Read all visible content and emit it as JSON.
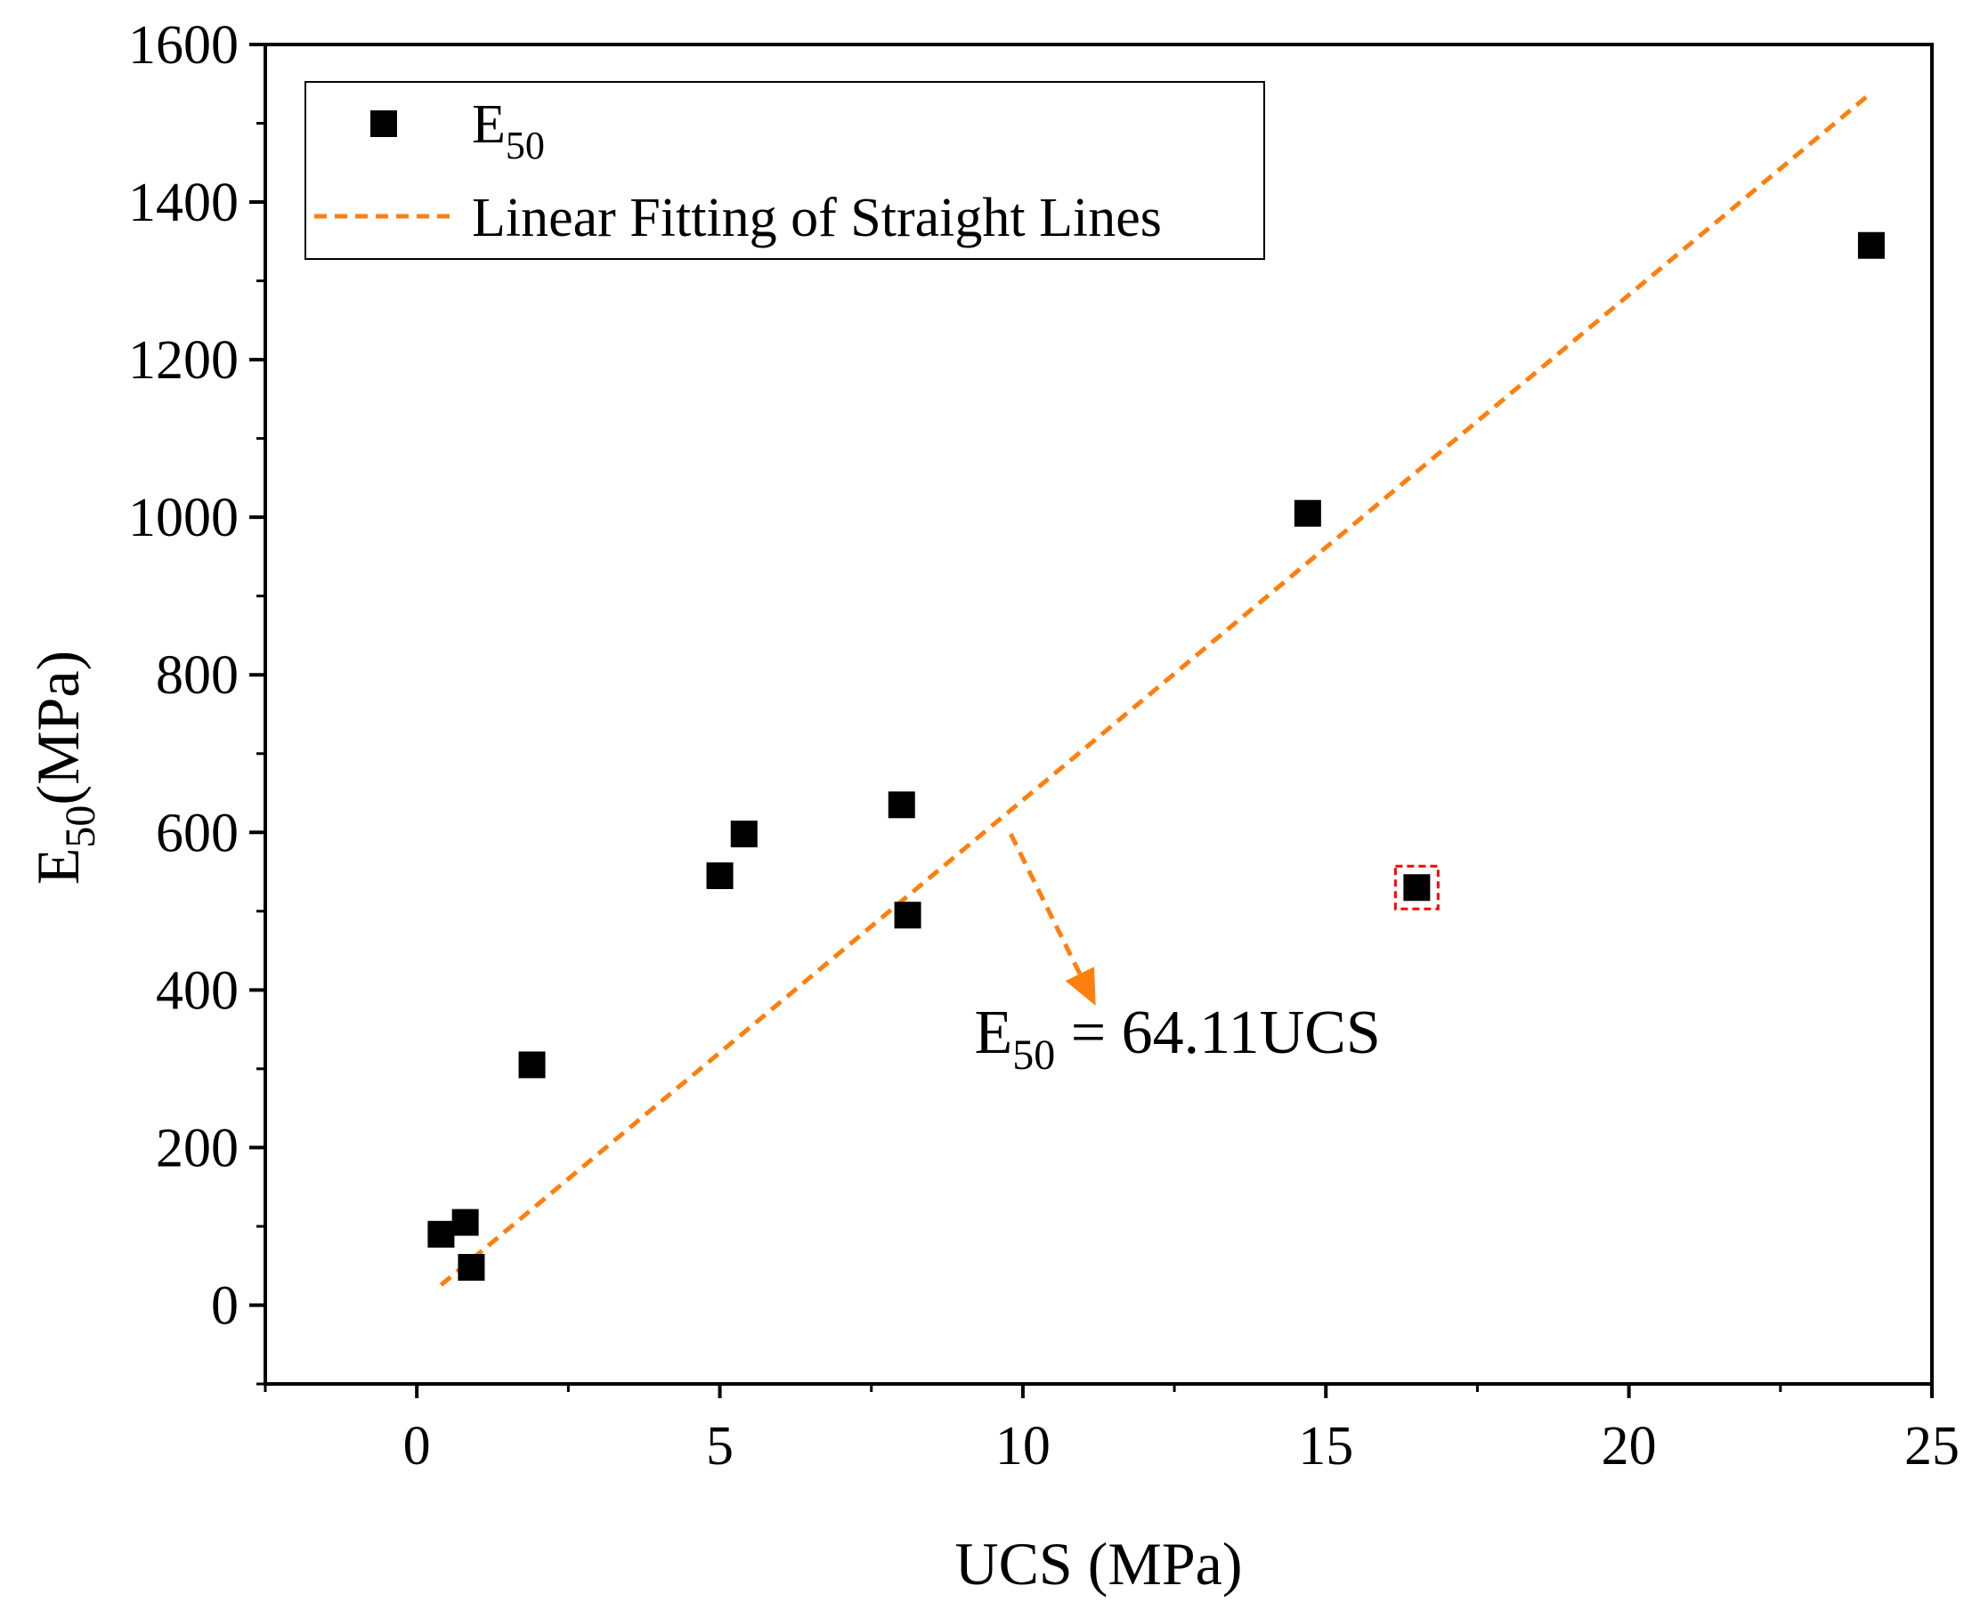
{
  "chart_data": {
    "type": "scatter",
    "title": "",
    "xlabel": "UCS (MPa)",
    "ylabel": {
      "main": "E",
      "sub": "50",
      "rest": "(MPa)"
    },
    "xlim": [
      -2.5,
      25
    ],
    "ylim": [
      -100,
      1600
    ],
    "x_ticks": [
      0,
      5,
      10,
      15,
      20,
      25
    ],
    "x_tick_labels": [
      "0",
      "5",
      "10",
      "15",
      "20",
      "25"
    ],
    "y_ticks": [
      0,
      200,
      400,
      600,
      800,
      1000,
      1200,
      1400,
      1600
    ],
    "y_tick_labels": [
      "0",
      "200",
      "400",
      "600",
      "800",
      "1000",
      "1200",
      "1400",
      "1600"
    ],
    "grid": false,
    "legend_position": "top-left",
    "series": [
      {
        "name": "E50",
        "legend_main": "E",
        "legend_sub": "50",
        "kind": "scatter",
        "marker": "square",
        "color": "#000000",
        "x": [
          0.4,
          0.8,
          0.9,
          1.9,
          5.0,
          5.4,
          8.0,
          8.1,
          14.7,
          16.5,
          24.0
        ],
        "y": [
          90,
          105,
          48,
          305,
          545,
          598,
          635,
          495,
          1005,
          530,
          1345
        ],
        "highlighted_index": 9,
        "highlight_color": "#ff0000"
      },
      {
        "name": "Linear Fitting of Straight Lines",
        "kind": "line",
        "style": "dashed",
        "color": "#ff7f0e",
        "slope": 64.11,
        "x_range": [
          0.4,
          24.0
        ]
      }
    ],
    "annotation": {
      "main": "E",
      "sub": "50",
      "rest": " = 64.11UCS",
      "arrow_from": [
        9.8,
        598
      ],
      "arrow_to": [
        11.2,
        380
      ],
      "text_at": [
        9.2,
        320
      ],
      "arrow_color": "#ff7f0e"
    }
  }
}
